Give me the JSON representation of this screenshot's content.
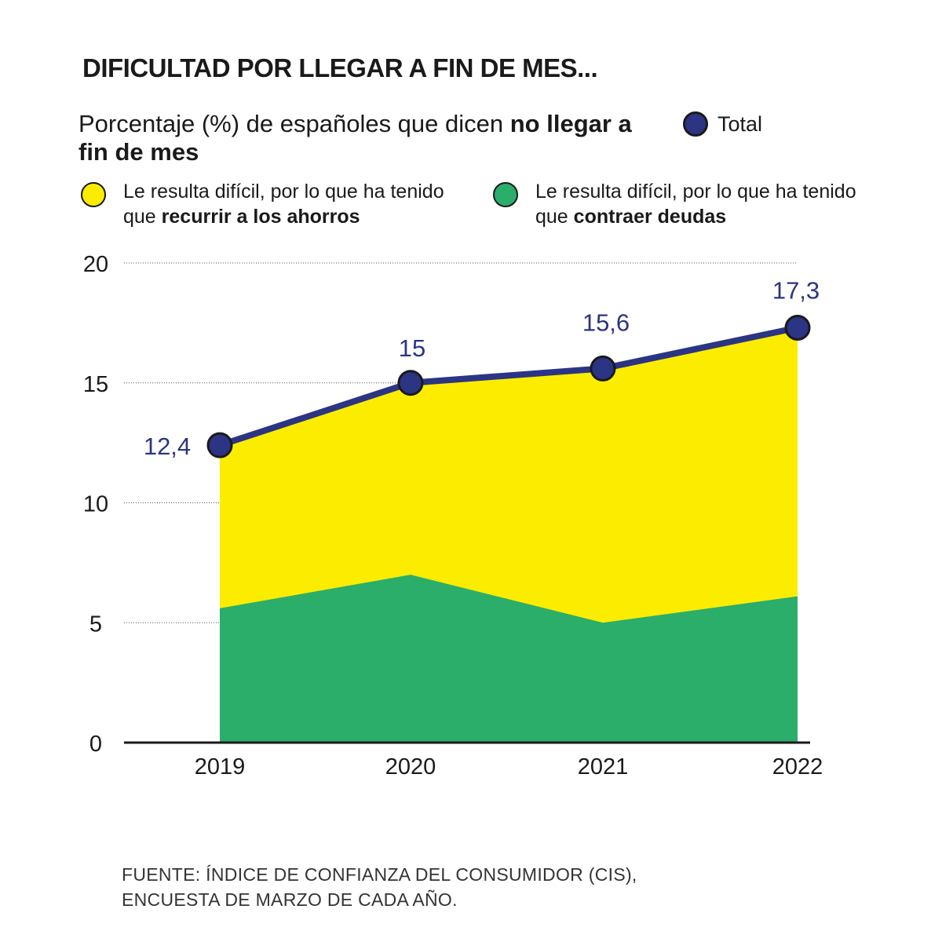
{
  "title": "DIFICULTAD POR LLEGAR A FIN DE MES...",
  "subtitle_plain": "Porcentaje (%) de españoles que dicen ",
  "subtitle_bold": "no llegar a fin de mes",
  "legend": {
    "total": "Total",
    "ahorros_plain": "Le resulta difícil, por lo que ha tenido que ",
    "ahorros_bold": "recurrir a los ahorros",
    "deudas_plain": "Le resulta difícil, por lo que ha tenido que ",
    "deudas_bold": "contraer deudas"
  },
  "colors": {
    "total": "#2b3584",
    "ahorros": "#fcec00",
    "deudas": "#2aae6a"
  },
  "chart_data": {
    "type": "area",
    "categories": [
      "2019",
      "2020",
      "2021",
      "2022"
    ],
    "series": [
      {
        "name": "Total",
        "values": [
          12.4,
          15,
          15.6,
          17.3
        ],
        "labels": [
          "12,4",
          "15",
          "15,6",
          "17,3"
        ]
      },
      {
        "name": "Le resulta difícil, por lo que ha tenido que contraer deudas",
        "values": [
          5.6,
          7.0,
          5.0,
          6.1
        ]
      }
    ],
    "y_ticks": [
      "0",
      "5",
      "10",
      "15",
      "20"
    ],
    "ylim": [
      0,
      20
    ],
    "grid": true
  },
  "source": [
    "FUENTE: ÍNDICE DE CONFIANZA DEL CONSUMIDOR (CIS),",
    "ENCUESTA DE MARZO DE CADA AÑO."
  ]
}
